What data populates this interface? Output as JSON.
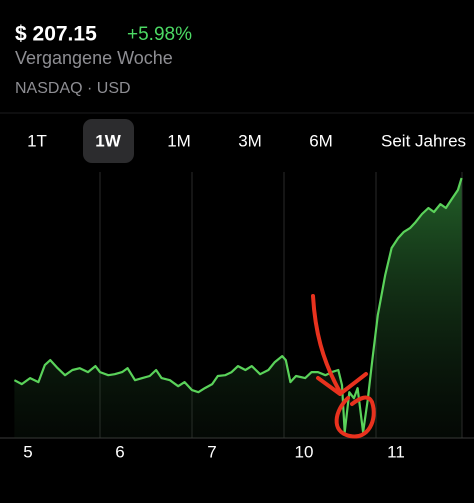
{
  "header": {
    "price": "$ 207.15",
    "change": "+5.98%",
    "period": "Vergangene Woche",
    "exchange": "NASDAQ · USD"
  },
  "tabs": [
    "1T",
    "1W",
    "1M",
    "3M",
    "6M",
    "Seit Jahres"
  ],
  "selected_tab": 1,
  "chart_data": {
    "type": "line",
    "color": "#5ad25a",
    "x": [
      0.07,
      0.15,
      0.24,
      0.33,
      0.4,
      0.46,
      0.54,
      0.62,
      0.7,
      0.78,
      0.87,
      0.95,
      1.0,
      1.09,
      1.16,
      1.24,
      1.3,
      1.38,
      1.46,
      1.54,
      1.61,
      1.67,
      1.76,
      1.85,
      1.92,
      2.0,
      2.07,
      2.14,
      2.22,
      2.28,
      2.36,
      2.43,
      2.5,
      2.58,
      2.65,
      2.74,
      2.83,
      2.9,
      2.98,
      3.02,
      3.07,
      3.13,
      3.23,
      3.3,
      3.37,
      3.45,
      3.52,
      3.59,
      3.63,
      3.66,
      3.71,
      3.76,
      3.8,
      3.86,
      3.91,
      3.96,
      4.02,
      4.1,
      4.17,
      4.24,
      4.3,
      4.37,
      4.43,
      4.5,
      4.57,
      4.63,
      4.7,
      4.76,
      4.83,
      4.89,
      4.93
    ],
    "values": [
      195.37,
      195.14,
      195.49,
      195.26,
      196.25,
      196.54,
      196.07,
      195.66,
      195.96,
      196.07,
      195.84,
      196.19,
      195.84,
      195.66,
      195.72,
      195.84,
      196.07,
      195.37,
      195.49,
      195.61,
      195.96,
      195.49,
      195.37,
      195.02,
      195.26,
      194.79,
      194.67,
      194.91,
      195.14,
      195.61,
      195.66,
      195.84,
      196.19,
      195.96,
      196.19,
      195.72,
      195.96,
      196.42,
      196.77,
      196.54,
      195.26,
      195.61,
      195.49,
      195.84,
      195.84,
      195.66,
      195.84,
      195.96,
      195.08,
      192.34,
      194.67,
      194.32,
      194.91,
      192.34,
      194.21,
      196.54,
      199.16,
      201.49,
      203.07,
      203.65,
      204.0,
      204.23,
      204.58,
      205.05,
      205.4,
      205.17,
      205.63,
      205.4,
      205.98,
      206.45,
      207.15
    ],
    "xlim": [
      0,
      5
    ],
    "xticks": [
      {
        "value": 0,
        "label": "5"
      },
      {
        "value": 1,
        "label": "6"
      },
      {
        "value": 2,
        "label": "7"
      },
      {
        "value": 3,
        "label": "10"
      },
      {
        "value": 4,
        "label": "11"
      }
    ],
    "ylim": [
      192,
      207.5
    ],
    "grid": true
  }
}
